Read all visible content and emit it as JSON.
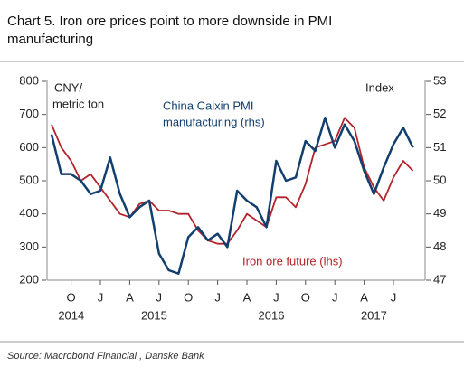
{
  "chart_data": {
    "type": "line",
    "title": [
      "Chart 5. Iron ore prices point to more downside in PMI",
      "manufacturing"
    ],
    "source": "Source: Macrobond Financial , Danske Bank",
    "left_axis_label": [
      "CNY/",
      "metric ton"
    ],
    "right_axis_label": "Index",
    "x": [
      "2014-08",
      "2014-09",
      "2014-10",
      "2014-11",
      "2014-12",
      "2015-01",
      "2015-02",
      "2015-03",
      "2015-04",
      "2015-05",
      "2015-06",
      "2015-07",
      "2015-08",
      "2015-09",
      "2015-10",
      "2015-11",
      "2015-12",
      "2016-01",
      "2016-02",
      "2016-03",
      "2016-04",
      "2016-05",
      "2016-06",
      "2016-07",
      "2016-08",
      "2016-09",
      "2016-10",
      "2016-11",
      "2016-12",
      "2017-01",
      "2017-02",
      "2017-03",
      "2017-04",
      "2017-05",
      "2017-06",
      "2017-07",
      "2017-08",
      "2017-09"
    ],
    "xticks": [
      {
        "value": "2014-10",
        "label": "O"
      },
      {
        "value": "2015-01",
        "label": "J"
      },
      {
        "value": "2015-04",
        "label": "A"
      },
      {
        "value": "2015-07",
        "label": "J"
      },
      {
        "value": "2015-10",
        "label": "O"
      },
      {
        "value": "2016-01",
        "label": "J"
      },
      {
        "value": "2016-04",
        "label": "A"
      },
      {
        "value": "2016-07",
        "label": "J"
      },
      {
        "value": "2016-10",
        "label": "O"
      },
      {
        "value": "2017-01",
        "label": "J"
      },
      {
        "value": "2017-04",
        "label": "A"
      },
      {
        "value": "2017-07",
        "label": "J"
      }
    ],
    "years": [
      "2014",
      "2015",
      "2016",
      "2017"
    ],
    "ylim": [
      200,
      800
    ],
    "yticks": [
      200,
      300,
      400,
      500,
      600,
      700,
      800
    ],
    "y2lim": [
      47,
      53
    ],
    "y2ticks": [
      47,
      48,
      49,
      50,
      51,
      52,
      53
    ],
    "series": [
      {
        "name": "Iron ore future (lhs)",
        "color": "#b3232b",
        "axis": "y",
        "values": [
          670,
          600,
          560,
          500,
          520,
          480,
          440,
          400,
          390,
          430,
          440,
          410,
          410,
          400,
          400,
          350,
          320,
          310,
          310,
          350,
          400,
          380,
          360,
          450,
          450,
          420,
          490,
          600,
          610,
          620,
          690,
          660,
          540,
          480,
          440,
          510,
          560,
          530
        ]
      },
      {
        "name": [
          "China Caixin PMI",
          "manufacturing (rhs)"
        ],
        "color": "#123f6e",
        "axis": "y2",
        "values": [
          51.4,
          50.2,
          50.2,
          50.0,
          49.6,
          49.7,
          50.7,
          49.6,
          48.9,
          49.2,
          49.4,
          47.8,
          47.3,
          47.2,
          48.3,
          48.6,
          48.2,
          48.4,
          48.0,
          49.7,
          49.4,
          49.2,
          48.6,
          50.6,
          50.0,
          50.1,
          51.2,
          50.9,
          51.9,
          51.0,
          51.7,
          51.2,
          50.3,
          49.6,
          50.4,
          51.1,
          51.6,
          51.0
        ]
      }
    ]
  }
}
